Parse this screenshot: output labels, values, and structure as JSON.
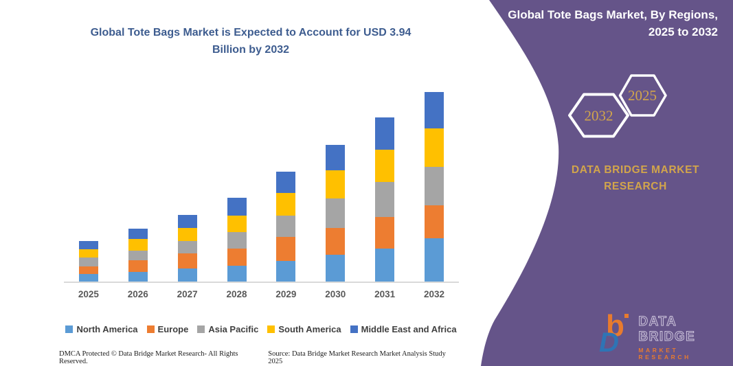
{
  "chart": {
    "title_line1": "Global Tote Bags Market is Expected to Account for USD 3.94",
    "title_line2": "Billion by 2032",
    "title_color": "#3D5C8F"
  },
  "chart_data": {
    "type": "bar",
    "stacked": true,
    "title": "Global Tote Bags Market is Expected to Account for USD 3.94 Billion by 2032",
    "unit": "USD Billion",
    "categories": [
      "2025",
      "2026",
      "2027",
      "2028",
      "2029",
      "2030",
      "2031",
      "2032"
    ],
    "series": [
      {
        "name": "North America",
        "color": "#5B9BD5",
        "values": [
          0.16,
          0.2,
          0.27,
          0.33,
          0.43,
          0.56,
          0.69,
          0.9
        ]
      },
      {
        "name": "Europe",
        "color": "#ED7D31",
        "values": [
          0.16,
          0.25,
          0.31,
          0.35,
          0.5,
          0.55,
          0.66,
          0.69
        ]
      },
      {
        "name": "Asia Pacific",
        "color": "#A5A5A5",
        "values": [
          0.18,
          0.19,
          0.26,
          0.35,
          0.44,
          0.62,
          0.72,
          0.79
        ]
      },
      {
        "name": "South America",
        "color": "#FFC000",
        "values": [
          0.17,
          0.24,
          0.28,
          0.34,
          0.48,
          0.58,
          0.68,
          0.8
        ]
      },
      {
        "name": "Middle East and Africa",
        "color": "#4472C4",
        "values": [
          0.17,
          0.22,
          0.27,
          0.38,
          0.43,
          0.54,
          0.67,
          0.76
        ]
      }
    ],
    "totals": [
      0.84,
      1.1,
      1.39,
      1.75,
      2.28,
      2.85,
      3.42,
      3.94
    ],
    "ylim": [
      0,
      4.2
    ],
    "grid": false,
    "y_axis_shown": false,
    "legend_position": "bottom"
  },
  "footer": {
    "left": "DMCA Protected © Data Bridge Market Research-  All Rights Reserved.",
    "right": "Source: Data Bridge Market Research  Market Analysis Study 2025"
  },
  "panel": {
    "title_line1": "Global Tote Bags Market, By Regions,",
    "title_line2": "2025 to 2032",
    "hexagon_left_year": "2032",
    "hexagon_right_year": "2025",
    "brand_line1": "DATA BRIDGE MARKET",
    "brand_line2": "RESEARCH",
    "colors": {
      "background": "#655489",
      "accent_gold": "#D2A54B"
    }
  },
  "logo": {
    "title": "DATA BRIDGE",
    "subtitle": "MARKET RESEARCH"
  }
}
